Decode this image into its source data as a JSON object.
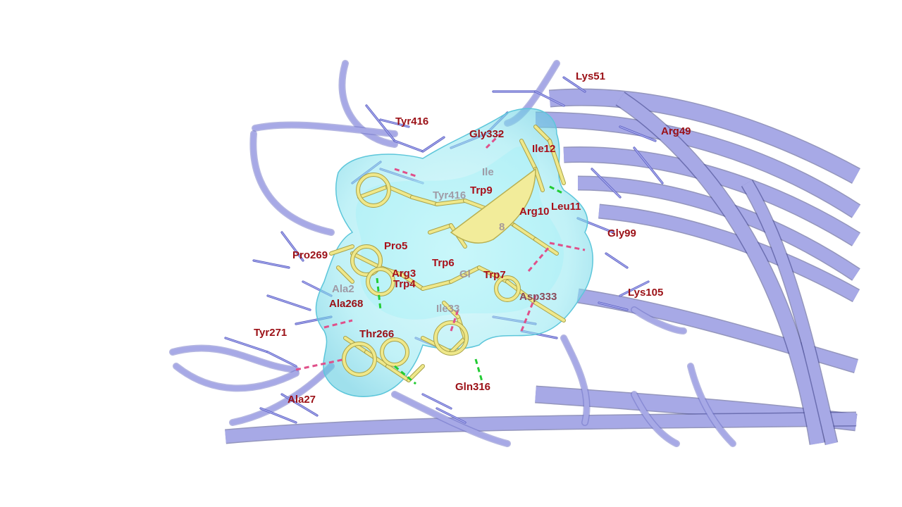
{
  "colors": {
    "ribbon": "#a7a9e6",
    "ribbon_dark": "#6b6fc4",
    "ribbon_shadow": "#3c3f85",
    "surface": "#7fe3ef",
    "ligand": "#efe88a",
    "label": "#a8101a",
    "hbond": "#22cc33",
    "hydrophobic": "#e0508a"
  },
  "ligand_labels": [
    "Trp9",
    "Arg10",
    "Pro5",
    "Trp6",
    "Arg3",
    "Trp4",
    "Trp7",
    "Ile12",
    "Leu11"
  ],
  "receptor_labels": [
    "Lys51",
    "Arg49",
    "Tyr416",
    "Gly332",
    "Gly99",
    "Pro269",
    "Ala268",
    "Tyr271",
    "Thr266",
    "Asp333",
    "Lys105",
    "Gln316",
    "Ala27"
  ],
  "faded_labels": [
    "Tyr416",
    "Ile",
    "Ala2",
    "Ile33",
    "8",
    "Gl",
    "Ab"
  ]
}
